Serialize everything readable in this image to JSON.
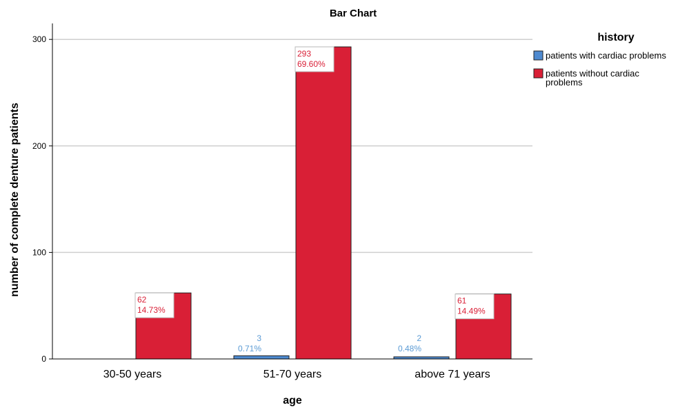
{
  "chart_data": {
    "type": "bar",
    "title": "Bar Chart",
    "xlabel": "age",
    "ylabel": "number of complete denture patients",
    "categories": [
      "30-50 years",
      "51-70 years",
      "above 71 years"
    ],
    "ylim": [
      0,
      315
    ],
    "yticks": [
      0,
      100,
      200,
      300
    ],
    "grid": true,
    "legend_title": "history",
    "legend_position": "right",
    "series": [
      {
        "name": "patients with cardiac problems",
        "color": "#4e8ad0",
        "label_color": "#5b9bd5",
        "values": [
          0,
          3,
          2
        ],
        "count_labels": [
          "",
          "3",
          "2"
        ],
        "percent_labels": [
          "",
          "0.71%",
          "0.48%"
        ]
      },
      {
        "name": "patients without cardiac problems",
        "legend_lines": [
          "patients without cardiac",
          "problems"
        ],
        "color": "#d91f36",
        "label_color": "#d91f36",
        "values": [
          62,
          293,
          61
        ],
        "count_labels": [
          "62",
          "293",
          "61"
        ],
        "percent_labels": [
          "14.73%",
          "69.60%",
          "14.49%"
        ]
      }
    ]
  }
}
